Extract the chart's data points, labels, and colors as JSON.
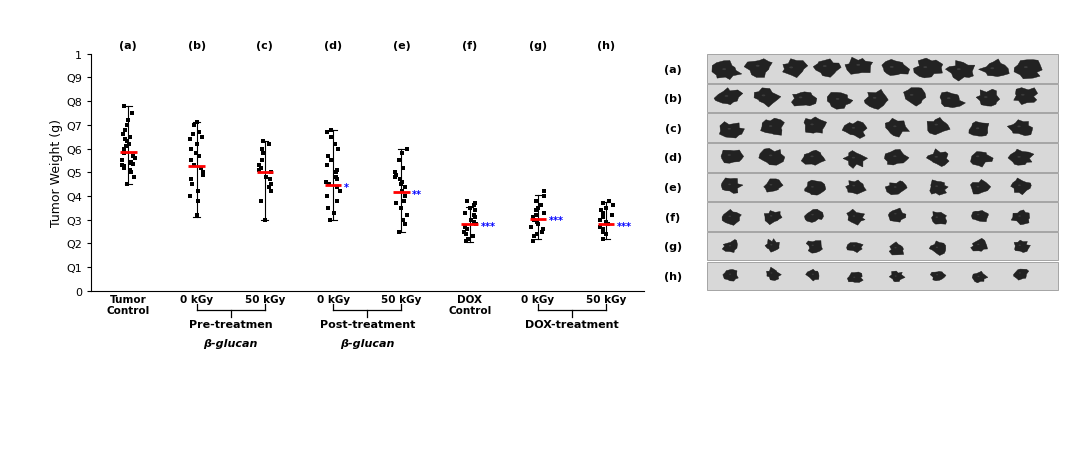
{
  "groups": [
    "(a)",
    "(b)",
    "(c)",
    "(d)",
    "(e)",
    "(f)",
    "(g)",
    "(h)"
  ],
  "group_labels": [
    "Tumor\nControl",
    "0 kGy",
    "50 kGy",
    "0 kGy",
    "50 kGy",
    "DOX\nControl",
    "0 kGy",
    "50 kGy"
  ],
  "means": [
    0.585,
    0.525,
    0.5,
    0.445,
    0.415,
    0.28,
    0.305,
    0.28
  ],
  "error_upper": [
    0.195,
    0.185,
    0.13,
    0.235,
    0.185,
    0.075,
    0.1,
    0.095
  ],
  "error_lower": [
    0.135,
    0.215,
    0.2,
    0.145,
    0.165,
    0.075,
    0.085,
    0.06
  ],
  "significance": [
    "",
    "",
    "",
    "*",
    "**",
    "***",
    "***",
    "***"
  ],
  "data_points": [
    [
      0.45,
      0.48,
      0.5,
      0.51,
      0.52,
      0.525,
      0.53,
      0.535,
      0.54,
      0.545,
      0.55,
      0.56,
      0.57,
      0.58,
      0.59,
      0.6,
      0.61,
      0.62,
      0.63,
      0.64,
      0.65,
      0.66,
      0.68,
      0.7,
      0.72,
      0.75,
      0.78
    ],
    [
      0.32,
      0.38,
      0.4,
      0.42,
      0.45,
      0.47,
      0.49,
      0.5,
      0.52,
      0.53,
      0.55,
      0.57,
      0.58,
      0.6,
      0.62,
      0.64,
      0.65,
      0.66,
      0.67,
      0.7,
      0.71
    ],
    [
      0.3,
      0.38,
      0.42,
      0.44,
      0.45,
      0.47,
      0.48,
      0.5,
      0.51,
      0.52,
      0.53,
      0.55,
      0.58,
      0.6,
      0.62,
      0.63
    ],
    [
      0.3,
      0.33,
      0.35,
      0.38,
      0.4,
      0.42,
      0.44,
      0.45,
      0.46,
      0.47,
      0.48,
      0.5,
      0.51,
      0.53,
      0.55,
      0.57,
      0.6,
      0.62,
      0.65,
      0.67,
      0.68
    ],
    [
      0.25,
      0.28,
      0.3,
      0.32,
      0.35,
      0.37,
      0.38,
      0.4,
      0.42,
      0.44,
      0.45,
      0.46,
      0.47,
      0.48,
      0.49,
      0.5,
      0.52,
      0.55,
      0.58,
      0.6
    ],
    [
      0.21,
      0.22,
      0.23,
      0.24,
      0.25,
      0.26,
      0.27,
      0.28,
      0.29,
      0.3,
      0.31,
      0.32,
      0.33,
      0.34,
      0.35,
      0.36,
      0.37,
      0.38
    ],
    [
      0.21,
      0.23,
      0.24,
      0.25,
      0.26,
      0.27,
      0.28,
      0.29,
      0.3,
      0.31,
      0.32,
      0.33,
      0.34,
      0.35,
      0.36,
      0.38,
      0.4,
      0.42
    ],
    [
      0.22,
      0.24,
      0.25,
      0.26,
      0.27,
      0.28,
      0.29,
      0.3,
      0.31,
      0.32,
      0.33,
      0.34,
      0.35,
      0.36,
      0.37,
      0.38
    ]
  ],
  "ylabel": "Tumor Weight (g)",
  "ylim": [
    0,
    1.0
  ],
  "yticks": [
    0,
    0.1,
    0.2,
    0.3,
    0.4,
    0.5,
    0.6,
    0.7,
    0.8,
    0.9,
    1.0
  ],
  "yticklabels": [
    "0",
    "Q1",
    "Q2",
    "Q3",
    "Q4",
    "Q5",
    "Q6",
    "Q7",
    "Q8",
    "Q9",
    "1"
  ],
  "row_labels": [
    "(a)",
    "(b)",
    "(c)",
    "(d)",
    "(e)",
    "(f)",
    "(g)",
    "(h)"
  ],
  "bg_color": "#e8e8e8",
  "panel_bg": "#f0f0f0"
}
